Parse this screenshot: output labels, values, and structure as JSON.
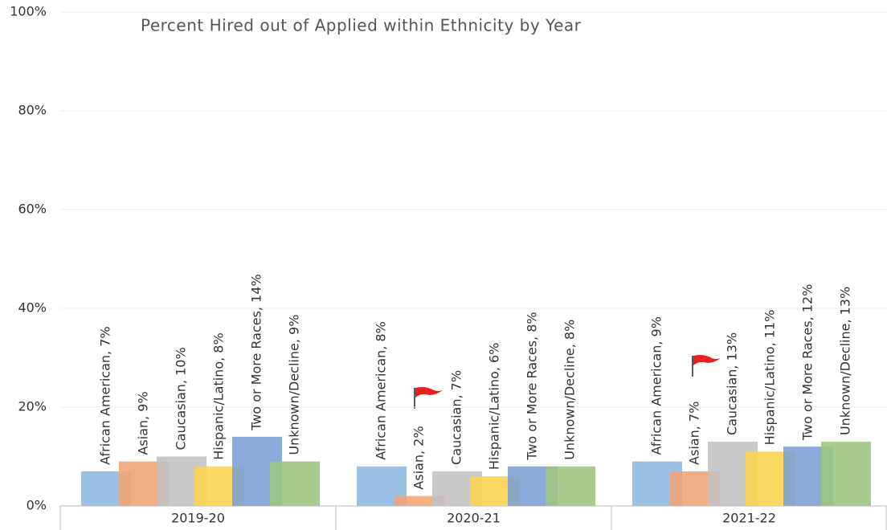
{
  "chart_data": {
    "type": "bar",
    "title": "Percent Hired out of Applied within Ethnicity by Year",
    "categories": [
      "2019-20",
      "2020-21",
      "2021-22"
    ],
    "series": [
      {
        "name": "African American",
        "color": "#8db8e3",
        "values": [
          7,
          8,
          9
        ],
        "value_labels": [
          "African American, 7%",
          "African American, 8%",
          "African American, 9%"
        ]
      },
      {
        "name": "Asian",
        "color": "#f0a474",
        "values": [
          9,
          2,
          7
        ],
        "value_labels": [
          "Asian, 9%",
          "Asian, 2%",
          "Asian, 7%"
        ]
      },
      {
        "name": "Caucasian",
        "color": "#c2c2c2",
        "values": [
          10,
          7,
          13
        ],
        "value_labels": [
          "Caucasian, 10%",
          "Caucasian, 7%",
          "Caucasian, 13%"
        ]
      },
      {
        "name": "Hispanic/Latino",
        "color": "#fdd34d",
        "values": [
          8,
          6,
          11
        ],
        "value_labels": [
          "Hispanic/Latino, 8%",
          "Hispanic/Latino, 6%",
          "Hispanic/Latino, 11%"
        ]
      },
      {
        "name": "Two or More Races",
        "color": "#7b9fd6",
        "values": [
          14,
          8,
          12
        ],
        "value_labels": [
          "Two or More Races, 14%",
          "Two or More Races, 8%",
          "Two or More Races, 12%"
        ]
      },
      {
        "name": "Unknown/Decline",
        "color": "#9cc57e",
        "values": [
          9,
          8,
          13
        ],
        "value_labels": [
          "Unknown/Decline, 9%",
          "Unknown/Decline, 8%",
          "Unknown/Decline, 13%"
        ]
      }
    ],
    "ylim": [
      0,
      100
    ],
    "yticks": [
      {
        "value": 0,
        "label": "0%"
      },
      {
        "value": 20,
        "label": "20%"
      },
      {
        "value": 40,
        "label": "40%"
      },
      {
        "value": 60,
        "label": "60%"
      },
      {
        "value": 80,
        "label": "80%"
      },
      {
        "value": 100,
        "label": "100%"
      }
    ],
    "grid": true
  }
}
